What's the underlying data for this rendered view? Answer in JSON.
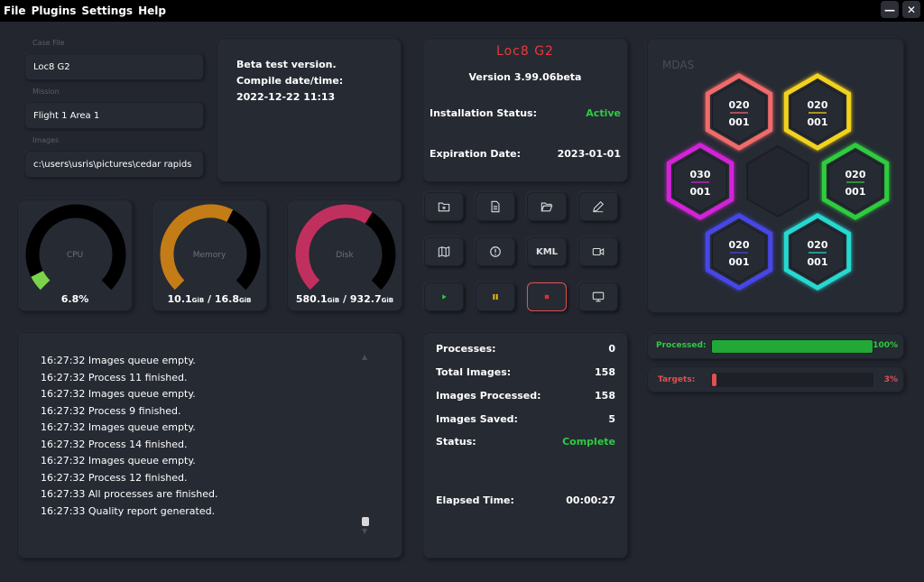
{
  "menu": [
    "File",
    "Plugins",
    "Settings",
    "Help"
  ],
  "window_controls": {
    "minimize": "—",
    "close": "✕"
  },
  "case": {
    "case_file_label": "Case File",
    "case_file": "Loc8 G2",
    "mission_label": "Mission",
    "mission": "Flight 1 Area 1",
    "images_label": "Images",
    "images": "c:\\users\\usris\\pictures\\cedar rapids"
  },
  "build_info": {
    "line1": "Beta test version.",
    "line2": "Compile date/time:",
    "line3": "2022-12-22 11:13"
  },
  "app_info": {
    "title": "Loc8 G2",
    "version": "Version 3.99.06beta",
    "install_label": "Installation Status:",
    "install_value": "Active",
    "expire_label": "Expiration Date:",
    "expire_value": "2023-01-01"
  },
  "gauges": [
    {
      "name": "cpu",
      "label": "CPU",
      "value": "6.8%",
      "fraction": 0.068,
      "color": "#7bd34b"
    },
    {
      "name": "memory",
      "label": "Memory",
      "v1": "10.1",
      "u1": "GiB",
      "v2": "16.8",
      "u2": "GiB",
      "fraction": 0.6,
      "color": "#c47c16"
    },
    {
      "name": "disk",
      "label": "Disk",
      "v1": "580.1",
      "u1": "GiB",
      "v2": "932.7",
      "u2": "GiB",
      "fraction": 0.62,
      "color": "#c0305e"
    }
  ],
  "toolbar": {
    "kml_label": "KML"
  },
  "log": [
    "16:27:32 Images queue empty.",
    "16:27:32 Process 11 finished.",
    "16:27:32 Images queue empty.",
    "16:27:32 Process 9 finished.",
    "16:27:32 Images queue empty.",
    "16:27:32 Process 14 finished.",
    "16:27:32 Images queue empty.",
    "16:27:32 Process 12 finished.",
    "16:27:33 All processes are finished.",
    "16:27:33 Quality report generated."
  ],
  "stats": {
    "processes_label": "Processes:",
    "processes": "0",
    "total_label": "Total Images:",
    "total": "158",
    "processed_label": "Images Processed:",
    "processed": "158",
    "saved_label": "Images Saved:",
    "saved": "5",
    "status_label": "Status:",
    "status": "Complete",
    "elapsed_label": "Elapsed Time:",
    "elapsed": "00:00:27"
  },
  "mdas": {
    "title": "MDAS",
    "hexes": [
      {
        "name": "top-left",
        "top": "020",
        "bottom": "001",
        "color": "#f06a6a"
      },
      {
        "name": "top-right",
        "top": "020",
        "bottom": "001",
        "color": "#f2d21f"
      },
      {
        "name": "left",
        "top": "030",
        "bottom": "001",
        "color": "#d423d9"
      },
      {
        "name": "right",
        "top": "020",
        "bottom": "001",
        "color": "#2fcc3d"
      },
      {
        "name": "bottom-left",
        "top": "020",
        "bottom": "001",
        "color": "#4646e8"
      },
      {
        "name": "bottom-right",
        "top": "020",
        "bottom": "001",
        "color": "#25d8d0"
      }
    ]
  },
  "progress": {
    "processed_label": "Processed:",
    "processed_pct": "100%",
    "processed_fraction": 1.0,
    "targets_label": "Targets:",
    "targets_pct": "3%",
    "targets_fraction": 0.03
  },
  "colors": {
    "green": "#2ecc40",
    "red": "#e05050",
    "title_red": "#e83a3a",
    "bar_green": "#21a836"
  }
}
